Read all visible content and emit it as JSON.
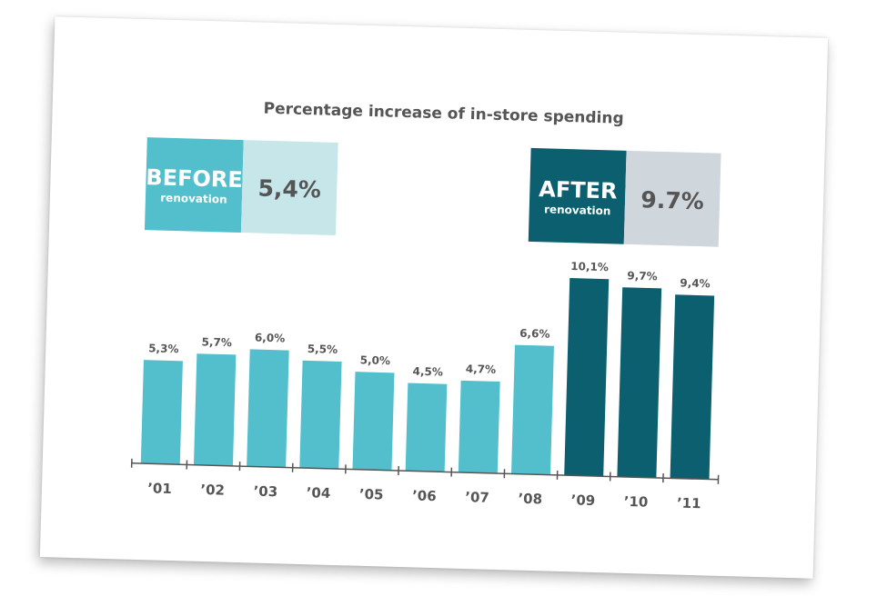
{
  "chart_data": {
    "type": "bar",
    "title": "Percentage increase of in-store spending",
    "categories": [
      "’01",
      "’02",
      "’03",
      "’04",
      "’05",
      "’06",
      "’07",
      "’08",
      "’09",
      "’10",
      "’11"
    ],
    "values": [
      5.3,
      5.7,
      6.0,
      5.5,
      5.0,
      4.5,
      4.7,
      6.6,
      10.1,
      9.7,
      9.4
    ],
    "data_labels": [
      "5,3%",
      "5,7%",
      "6,0%",
      "5,5%",
      "5,0%",
      "4,5%",
      "4,7%",
      "6,6%",
      "10,1%",
      "9,7%",
      "9,4%"
    ],
    "series_period": [
      "before",
      "before",
      "before",
      "before",
      "before",
      "before",
      "before",
      "before",
      "after",
      "after",
      "after"
    ],
    "xlabel": "",
    "ylabel": "",
    "ylim": [
      0,
      11
    ],
    "grid": false,
    "legend": false
  },
  "callouts": {
    "before": {
      "big": "BEFORE",
      "small": "renovation",
      "value": "5,4%"
    },
    "after": {
      "big": "AFTER",
      "small": "renovation",
      "value": "9.7%"
    }
  },
  "colors": {
    "before_bar": "#54bfcc",
    "after_bar": "#0c5f6f",
    "before_tag_bg": "#c6e6ea",
    "after_tag_bg": "#cfd6dc",
    "text": "#555555",
    "axis": "#555555"
  }
}
